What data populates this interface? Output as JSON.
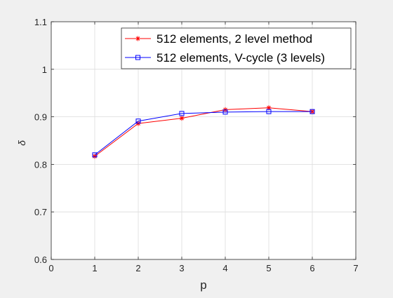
{
  "chart_data": {
    "type": "line",
    "xlabel": "p",
    "ylabel": "δ",
    "xlim": [
      0,
      7
    ],
    "ylim": [
      0.6,
      1.1
    ],
    "xticks": [
      0,
      1,
      2,
      3,
      4,
      5,
      6,
      7
    ],
    "yticks": [
      0.6,
      0.7,
      0.8,
      0.9,
      1,
      1.1
    ],
    "xtick_labels": [
      "0",
      "1",
      "2",
      "3",
      "4",
      "5",
      "6",
      "7"
    ],
    "ytick_labels": [
      "0.6",
      "0.7",
      "0.8",
      "0.9",
      "1",
      "1.1"
    ],
    "grid": true,
    "legend_position": "top-right",
    "series": [
      {
        "name": "512 elements, 2 level method",
        "color": "#ff0000",
        "marker": "asterisk",
        "x": [
          1,
          2,
          3,
          4,
          5,
          6
        ],
        "y": [
          0.817,
          0.886,
          0.897,
          0.915,
          0.919,
          0.911
        ]
      },
      {
        "name": "512 elements, V-cycle (3 levels)",
        "color": "#0000ff",
        "marker": "square",
        "x": [
          1,
          2,
          3,
          4,
          5,
          6
        ],
        "y": [
          0.82,
          0.891,
          0.907,
          0.91,
          0.911,
          0.911
        ]
      }
    ]
  }
}
